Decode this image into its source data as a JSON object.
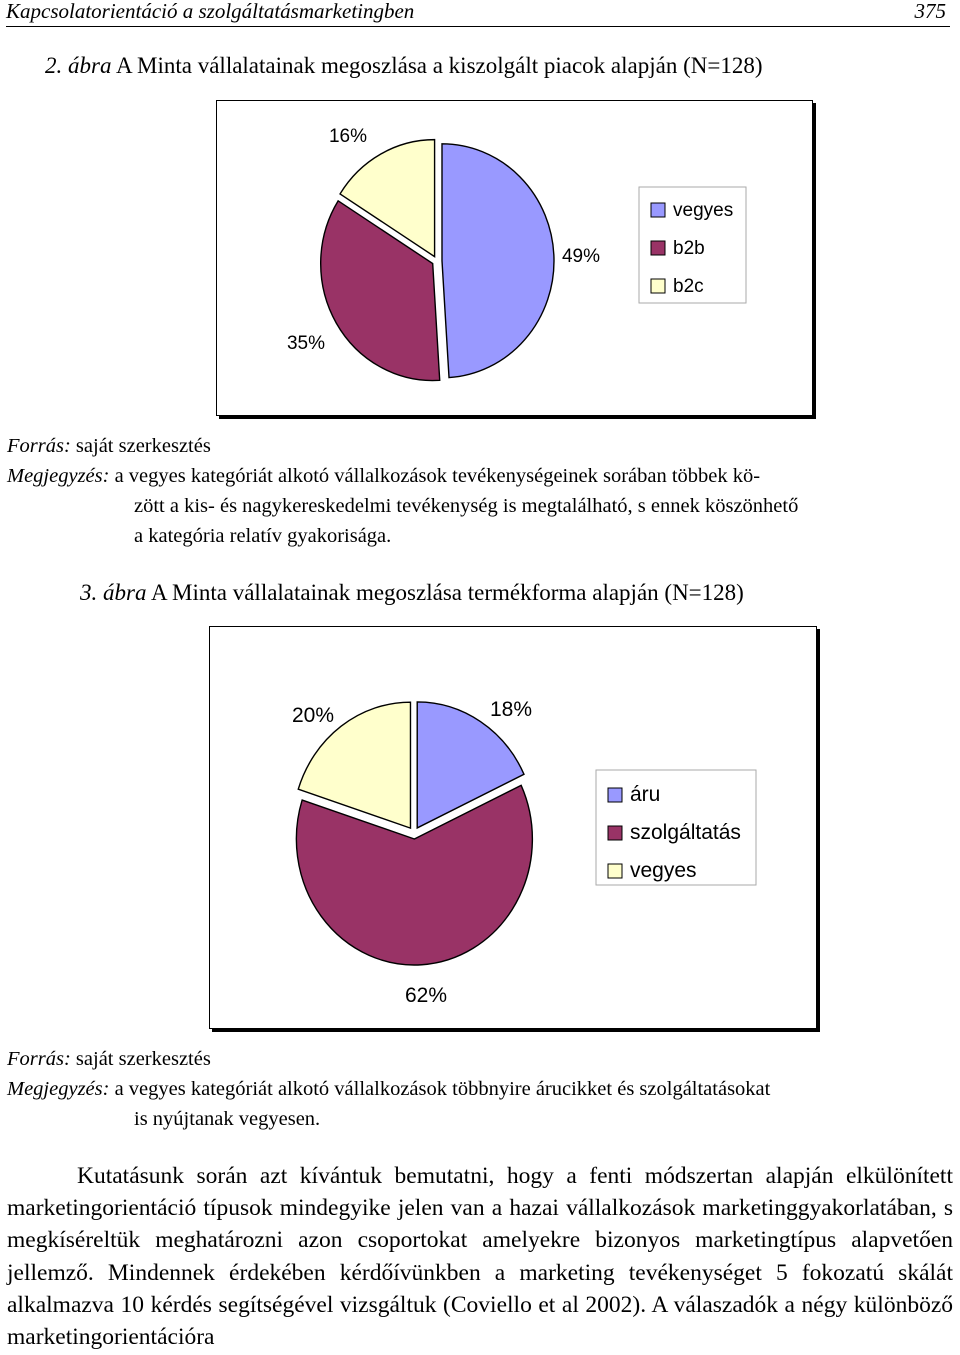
{
  "header": {
    "running_title": "Kapcsolatorientáció a szolgáltatásmarketingben",
    "page_number": "375"
  },
  "figure2": {
    "caption_num": "2. ábra",
    "caption_text": "A Minta vállalatainak megoszlása a kiszolgált piacok alapján (N=128)",
    "source_label": "Forrás:",
    "source_text": "saját szerkesztés",
    "note_label": "Megjegyzés:",
    "note_line1": "a vegyes kategóriát alkotó vállalkozások tevékenységeinek sorában többek kö-",
    "note_line2": "zött a kis- és nagykereskedelmi tevékenység is megtalálható, s ennek köszönhető",
    "note_line3": "a kategória relatív gyakorisága."
  },
  "figure3": {
    "caption_num": "3. ábra",
    "caption_text": "A Minta vállalatainak megoszlása termékforma alapján (N=128)",
    "source_label": "Forrás:",
    "source_text": "saját szerkesztés",
    "note_label": "Megjegyzés:",
    "note_line1": "a vegyes kategóriát alkotó vállalkozások többnyire árucikket és szolgáltatásokat",
    "note_line2": "is nyújtanak vegyesen."
  },
  "chart_data": [
    {
      "type": "pie",
      "title": "",
      "categories": [
        "vegyes",
        "b2b",
        "b2c"
      ],
      "values": [
        49,
        35,
        16
      ],
      "labels": [
        "49%",
        "35%",
        "16%"
      ],
      "colors": [
        "#9999ff",
        "#993366",
        "#ffffcc"
      ],
      "legend": "right",
      "start_angle_deg": 0
    },
    {
      "type": "pie",
      "title": "",
      "categories": [
        "áru",
        "szolgáltatás",
        "vegyes"
      ],
      "values": [
        18,
        62,
        20
      ],
      "labels": [
        "18%",
        "62%",
        "20%"
      ],
      "colors": [
        "#9999ff",
        "#993366",
        "#ffffcc"
      ],
      "legend": "right",
      "start_angle_deg": 0
    }
  ],
  "body": {
    "paragraph": "Kutatásunk során azt kívántuk bemutatni, hogy a fenti módszertan alapján elkülönített marketingorientáció típusok mindegyike jelen van a hazai vállalkozások marketinggyakorlatában, s megkíséreltük meghatározni azon csoportokat amelyekre bizonyos marketingtípus alapvetően jellemző. Mindennek érdekében kérdőívünkben a marketing tevékenységet 5 fokozatú skálát alkalmazva 10 kérdés segítségével vizsgáltuk (Coviello et al 2002). A válaszadók a négy különböző marketingorientációra"
  }
}
